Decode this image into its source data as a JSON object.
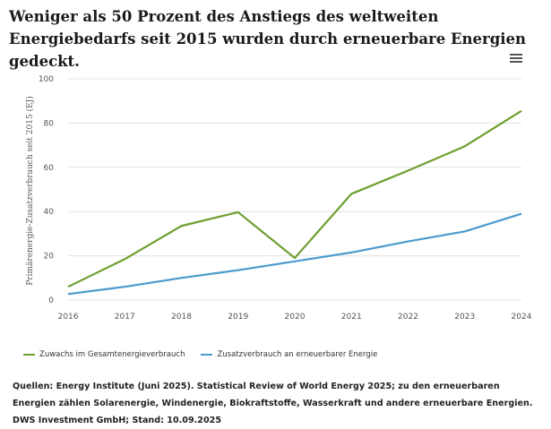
{
  "title": "Weniger als 50 Prozent des Anstiegs des weltweiten Energiebedarfs seit 2015 wurden durch erneuerbare Energien gedeckt.",
  "menu_icon": "hamburger-menu-icon",
  "source": "Quellen: Energy Institute (Juni 2025). Statistical Review of World Energy 2025; zu den erneuerbaren Energien zählen Solarenergie, Windenergie, Biokraftstoffe, Wasserkraft und andere erneuerbare Energien. DWS Investment GmbH; Stand: 10.09.2025",
  "chart_data": {
    "type": "line",
    "title": "Weniger als 50 Prozent des Anstiegs des weltweiten Energiebedarfs seit 2015 wurden durch erneuerbare Energien gedeckt.",
    "xlabel": "",
    "ylabel": "Primärenergie-Zusatzverbrauch seit 2015 (EJ)",
    "x": [
      "2016",
      "2017",
      "2018",
      "2019",
      "2020",
      "2021",
      "2022",
      "2023",
      "2024"
    ],
    "ylim": [
      0,
      100
    ],
    "yticks": [
      0,
      20,
      40,
      60,
      80,
      100
    ],
    "grid": "horizontal",
    "legend_position": "bottom-left",
    "series": [
      {
        "name": "Zuwachs im Gesamtenergieverbrauch",
        "color": "#6f9e2f",
        "values": [
          6,
          18.5,
          33.5,
          39.7,
          19,
          48,
          58.5,
          69.5,
          85.5
        ]
      },
      {
        "name": "Zusatzverbrauch an erneuerbarer Energie",
        "color": "#4a9acd",
        "values": [
          2.7,
          6,
          10,
          13.5,
          17.5,
          21.5,
          26.5,
          31,
          39
        ]
      }
    ]
  }
}
